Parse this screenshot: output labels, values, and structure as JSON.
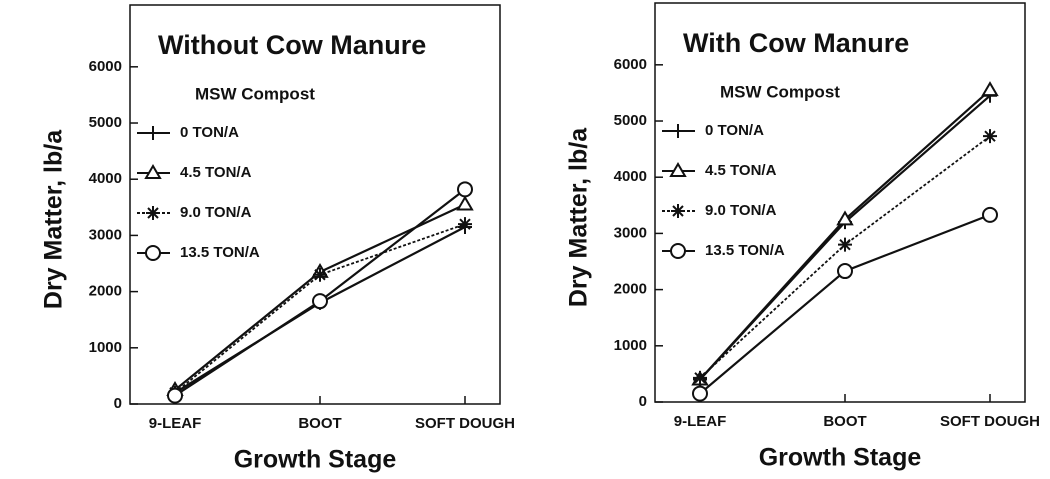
{
  "chart_data": [
    {
      "type": "line",
      "title": "Without Cow Manure",
      "legend_title": "MSW Compost",
      "x_label": "Growth Stage",
      "y_label": "Dry Matter, lb/a",
      "categories": [
        "9-LEAF",
        "BOOT",
        "SOFT DOUGH"
      ],
      "series": [
        {
          "name": "0 TON/A",
          "color": "#111111",
          "marker": "plus",
          "dashed": false,
          "values": [
            200,
            1800,
            3150
          ]
        },
        {
          "name": "4.5 TON/A",
          "color": "#111111",
          "marker": "triangle",
          "dashed": false,
          "values": [
            250,
            2350,
            3550
          ]
        },
        {
          "name": "9.0 TON/A",
          "color": "#111111",
          "marker": "asterisk",
          "dashed": true,
          "values": [
            200,
            2300,
            3200
          ]
        },
        {
          "name": "13.5 TON/A",
          "color": "#111111",
          "marker": "circle",
          "dashed": false,
          "values": [
            150,
            1830,
            3820
          ]
        }
      ],
      "ylim": [
        0,
        7100
      ],
      "yticks": [
        0,
        1000,
        2000,
        3000,
        4000,
        5000,
        6000
      ]
    },
    {
      "type": "line",
      "title": "With Cow Manure",
      "legend_title": "MSW Compost",
      "x_label": "Growth Stage",
      "y_label": "Dry Matter, lb/a",
      "categories": [
        "9-LEAF",
        "BOOT",
        "SOFT DOUGH"
      ],
      "series": [
        {
          "name": "0 TON/A",
          "color": "#111111",
          "marker": "plus",
          "dashed": false,
          "values": [
            400,
            3200,
            5450
          ]
        },
        {
          "name": "4.5 TON/A",
          "color": "#111111",
          "marker": "triangle",
          "dashed": false,
          "values": [
            400,
            3250,
            5550
          ]
        },
        {
          "name": "9.0 TON/A",
          "color": "#111111",
          "marker": "asterisk",
          "dashed": true,
          "values": [
            430,
            2800,
            4730
          ]
        },
        {
          "name": "13.5 TON/A",
          "color": "#111111",
          "marker": "circle",
          "dashed": false,
          "values": [
            150,
            2330,
            3330
          ]
        }
      ],
      "ylim": [
        0,
        7100
      ],
      "yticks": [
        0,
        1000,
        2000,
        3000,
        4000,
        5000,
        6000
      ]
    }
  ]
}
